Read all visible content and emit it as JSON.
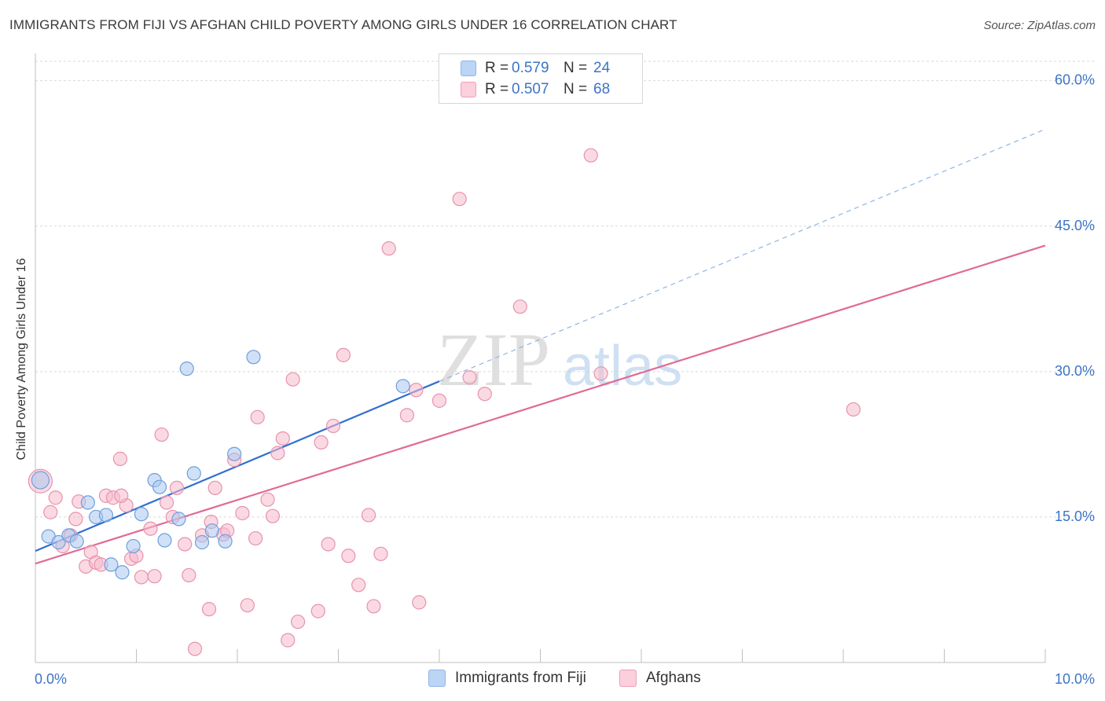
{
  "title": "IMMIGRANTS FROM FIJI VS AFGHAN CHILD POVERTY AMONG GIRLS UNDER 16 CORRELATION CHART",
  "source": "Source: ZipAtlas.com",
  "watermark": {
    "zip": "ZIP",
    "atlas": "atlas"
  },
  "legend_top": {
    "rows": [
      {
        "r_label": "R =",
        "r_value": "0.579",
        "n_label": "N =",
        "n_value": "24",
        "color": "#a9c8f0"
      },
      {
        "r_label": "R =",
        "r_value": "0.507",
        "n_label": "N =",
        "n_value": "68",
        "color": "#f7b9cc"
      }
    ]
  },
  "legend_bottom": {
    "items": [
      {
        "label": "Immigrants from Fiji",
        "color": "#a9c8f0"
      },
      {
        "label": "Afghans",
        "color": "#f7b9cc"
      }
    ]
  },
  "chart_data": {
    "type": "scatter",
    "title": "IMMIGRANTS FROM FIJI VS AFGHAN CHILD POVERTY AMONG GIRLS UNDER 16 CORRELATION CHART",
    "xlabel": "",
    "ylabel": "Child Poverty Among Girls Under 16",
    "xlim": [
      0,
      10
    ],
    "ylim": [
      0,
      62
    ],
    "x_tick_labels": [
      {
        "value": 0,
        "label": "0.0%"
      },
      {
        "value": 10,
        "label": "10.0%"
      }
    ],
    "y_tick_labels": [
      {
        "value": 15,
        "label": "15.0%"
      },
      {
        "value": 30,
        "label": "30.0%"
      },
      {
        "value": 45,
        "label": "45.0%"
      },
      {
        "value": 60,
        "label": "60.0%"
      }
    ],
    "gridlines_y": [
      15,
      30,
      45,
      60
    ],
    "series": [
      {
        "name": "Immigrants from Fiji",
        "color": "#a9c8f0",
        "stroke": "#6f9fdc",
        "points": [
          [
            0.05,
            18.8
          ],
          [
            0.13,
            13.0
          ],
          [
            0.23,
            12.4
          ],
          [
            0.33,
            13.1
          ],
          [
            0.41,
            12.5
          ],
          [
            0.52,
            16.5
          ],
          [
            0.6,
            15.0
          ],
          [
            0.7,
            15.2
          ],
          [
            0.75,
            10.1
          ],
          [
            0.86,
            9.3
          ],
          [
            0.97,
            12.0
          ],
          [
            1.05,
            15.3
          ],
          [
            1.18,
            18.8
          ],
          [
            1.23,
            18.1
          ],
          [
            1.28,
            12.6
          ],
          [
            1.42,
            14.8
          ],
          [
            1.5,
            30.3
          ],
          [
            1.57,
            19.5
          ],
          [
            1.65,
            12.4
          ],
          [
            1.75,
            13.6
          ],
          [
            1.88,
            12.5
          ],
          [
            1.97,
            21.5
          ],
          [
            2.16,
            31.5
          ],
          [
            3.64,
            28.5
          ]
        ],
        "trend": {
          "x0": 0.0,
          "y0": 11.5,
          "x1": 4.0,
          "y1": 29.0,
          "dash_x1": 10.0,
          "dash_y1": 55.0
        }
      },
      {
        "name": "Afghans",
        "color": "#f7b9cc",
        "stroke": "#e693ad",
        "points": [
          [
            0.05,
            18.7
          ],
          [
            0.15,
            15.5
          ],
          [
            0.2,
            17.0
          ],
          [
            0.27,
            12.0
          ],
          [
            0.35,
            13.1
          ],
          [
            0.4,
            14.8
          ],
          [
            0.43,
            16.6
          ],
          [
            0.5,
            9.9
          ],
          [
            0.55,
            11.4
          ],
          [
            0.6,
            10.3
          ],
          [
            0.65,
            10.1
          ],
          [
            0.7,
            17.2
          ],
          [
            0.77,
            17.0
          ],
          [
            0.84,
            21.0
          ],
          [
            0.9,
            16.2
          ],
          [
            0.95,
            10.7
          ],
          [
            1.0,
            11.0
          ],
          [
            1.05,
            8.8
          ],
          [
            1.14,
            13.8
          ],
          [
            1.18,
            8.9
          ],
          [
            1.25,
            23.5
          ],
          [
            1.3,
            16.5
          ],
          [
            1.36,
            15.0
          ],
          [
            1.4,
            18.0
          ],
          [
            1.48,
            12.2
          ],
          [
            1.52,
            9.0
          ],
          [
            1.58,
            1.4
          ],
          [
            1.65,
            13.1
          ],
          [
            1.72,
            5.5
          ],
          [
            1.74,
            14.5
          ],
          [
            1.78,
            18.0
          ],
          [
            1.86,
            13.2
          ],
          [
            1.9,
            13.6
          ],
          [
            1.97,
            20.9
          ],
          [
            2.05,
            15.4
          ],
          [
            2.1,
            5.9
          ],
          [
            2.18,
            12.8
          ],
          [
            2.2,
            25.3
          ],
          [
            2.3,
            16.8
          ],
          [
            2.35,
            15.1
          ],
          [
            2.4,
            21.6
          ],
          [
            2.45,
            23.1
          ],
          [
            2.5,
            2.3
          ],
          [
            2.55,
            29.2
          ],
          [
            2.6,
            4.2
          ],
          [
            2.8,
            5.3
          ],
          [
            2.83,
            22.7
          ],
          [
            2.9,
            12.2
          ],
          [
            2.95,
            24.4
          ],
          [
            3.05,
            31.7
          ],
          [
            3.1,
            11.0
          ],
          [
            3.2,
            8.0
          ],
          [
            3.3,
            15.2
          ],
          [
            3.35,
            5.8
          ],
          [
            3.42,
            11.2
          ],
          [
            3.5,
            42.7
          ],
          [
            3.8,
            6.2
          ],
          [
            3.77,
            28.1
          ],
          [
            4.0,
            27.0
          ],
          [
            4.2,
            47.8
          ],
          [
            4.3,
            29.4
          ],
          [
            4.45,
            27.7
          ],
          [
            4.8,
            36.7
          ],
          [
            5.5,
            52.3
          ],
          [
            5.6,
            29.8
          ],
          [
            8.1,
            26.1
          ],
          [
            3.68,
            25.5
          ],
          [
            0.85,
            17.2
          ]
        ],
        "trend": {
          "x0": 0.0,
          "y0": 10.2,
          "x1": 10.0,
          "y1": 43.0
        }
      }
    ]
  }
}
